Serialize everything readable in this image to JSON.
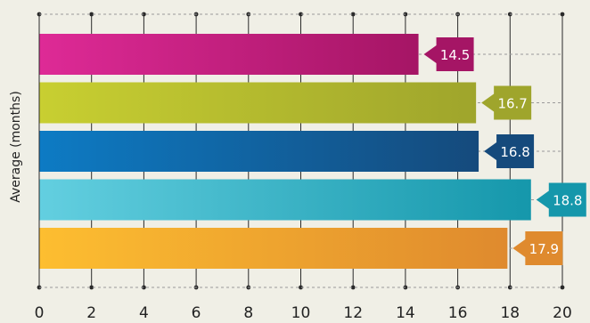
{
  "chart_data": {
    "type": "bar",
    "orientation": "horizontal",
    "title": "",
    "xlabel": "",
    "ylabel": "Average (months)",
    "xlim": [
      0,
      20
    ],
    "x_ticks": [
      "0",
      "2",
      "4",
      "6",
      "8",
      "10",
      "12",
      "14",
      "16",
      "18",
      "20"
    ],
    "grid": true,
    "values": [
      14.5,
      16.7,
      16.8,
      18.8,
      17.9
    ],
    "data_labels": [
      "14.5",
      "16.7",
      "16.8",
      "18.8",
      "17.9"
    ],
    "colors": [
      {
        "light": "#de2a96",
        "dark": "#a51565"
      },
      {
        "light": "#c8cf31",
        "dark": "#9fa52c"
      },
      {
        "light": "#0d7bc4",
        "dark": "#154a7c"
      },
      {
        "light": "#63cfe0",
        "dark": "#1597ab"
      },
      {
        "light": "#fdbe30",
        "dark": "#df8a2e"
      }
    ]
  }
}
